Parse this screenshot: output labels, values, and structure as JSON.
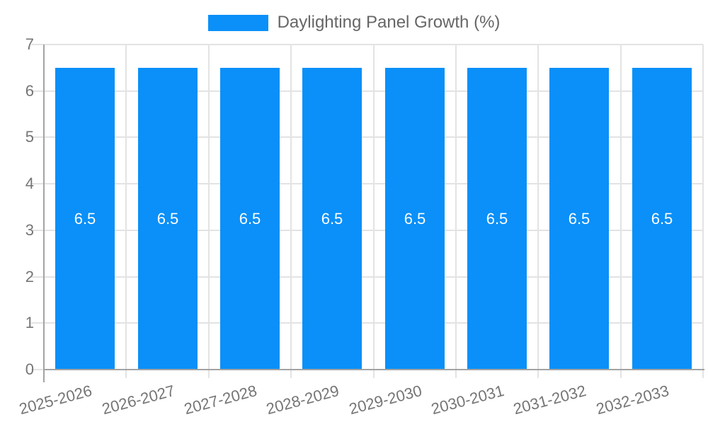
{
  "legend": {
    "label": "Daylighting Panel Growth (%)"
  },
  "chart_data": {
    "type": "bar",
    "title": "Daylighting Panel Growth (%)",
    "categories": [
      "2025-2026",
      "2026-2027",
      "2027-2028",
      "2028-2029",
      "2029-2030",
      "2030-2031",
      "2031-2032",
      "2032-2033"
    ],
    "values": [
      6.5,
      6.5,
      6.5,
      6.5,
      6.5,
      6.5,
      6.5,
      6.5
    ],
    "bar_value_labels": [
      "6.5",
      "6.5",
      "6.5",
      "6.5",
      "6.5",
      "6.5",
      "6.5",
      "6.5"
    ],
    "xlabel": "",
    "ylabel": "",
    "ylim": [
      0,
      7
    ],
    "ytick_step": 1,
    "yticks": [
      0,
      1,
      2,
      3,
      4,
      5,
      6,
      7
    ],
    "grid": true,
    "legend_position": "top-center",
    "x_label_rotation_deg": -15,
    "colors": {
      "bar": "#0a90f8",
      "bar_value_text": "#ffffff",
      "axis_text": "#757575",
      "legend_text": "#666666",
      "gridline": "#e3e3e3",
      "axis_line": "#a3a3a3",
      "background": "#ffffff"
    }
  }
}
